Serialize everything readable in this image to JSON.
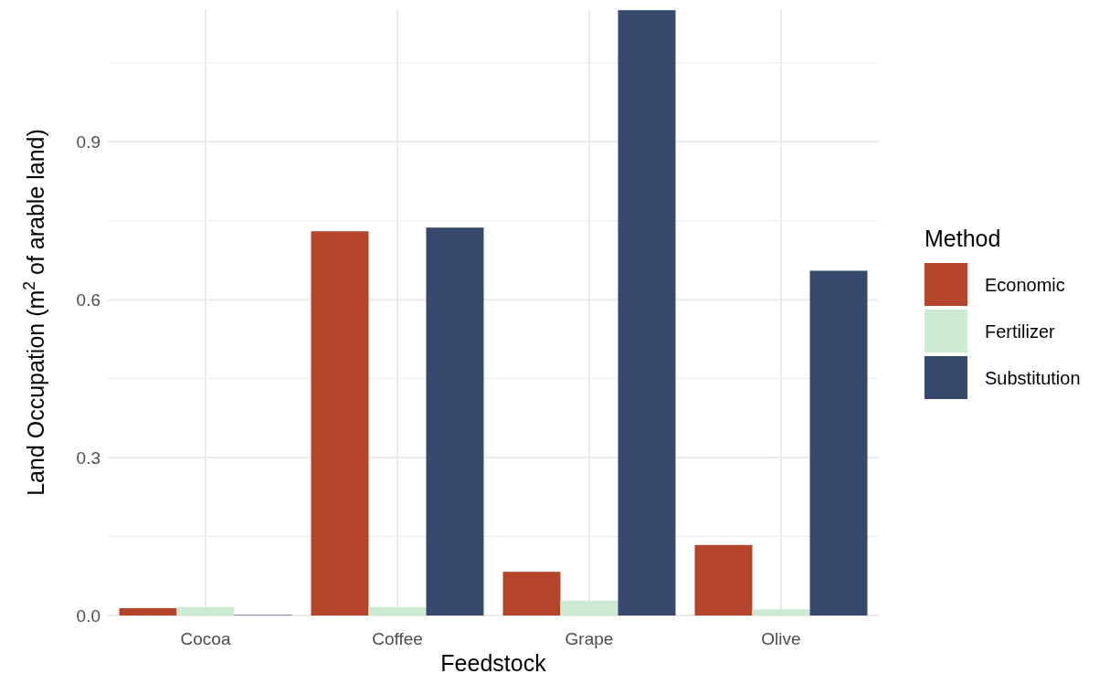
{
  "chart_data": {
    "type": "bar",
    "xlabel": "Feedstock",
    "ylabel": "Land Occupation (m$^{2}$ of arable land)",
    "legend_title": "Method",
    "legend": "right",
    "grid": true,
    "categories": [
      "Cocoa",
      "Coffee",
      "Grape",
      "Olive"
    ],
    "ylim": [
      0,
      1.152
    ],
    "yticks": [
      {
        "value": 0,
        "label": "0.0"
      },
      {
        "value": 0.15,
        "label": null
      },
      {
        "value": 0.3,
        "label": "0.3"
      },
      {
        "value": 0.45,
        "label": null
      },
      {
        "value": 0.6,
        "label": "0.6"
      },
      {
        "value": 0.75,
        "label": null
      },
      {
        "value": 0.9,
        "label": "0.9"
      },
      {
        "value": 1.05,
        "label": null
      }
    ],
    "series": [
      {
        "name": "Economic",
        "color": "#b5452a",
        "values": [
          0.014,
          0.73,
          0.083,
          0.134
        ]
      },
      {
        "name": "Fertilizer",
        "color": "#cdebd3",
        "values": [
          0.016,
          0.016,
          0.028,
          0.012
        ]
      },
      {
        "name": "Substitution",
        "color": "#374a6d",
        "values": [
          0.001,
          0.737,
          1.15,
          0.655
        ]
      }
    ]
  }
}
